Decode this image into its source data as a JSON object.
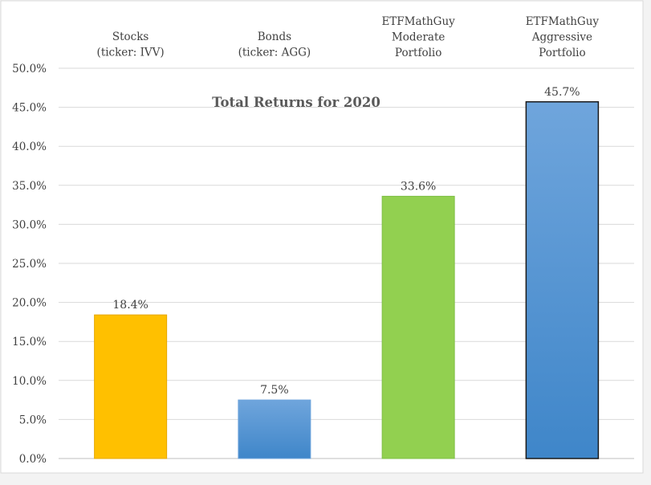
{
  "chart_data": {
    "type": "bar",
    "title": "Total Returns for 2020",
    "xlabel": "",
    "ylabel": "",
    "ylim": [
      0,
      50
    ],
    "ytick_step": 5,
    "ytick_format": "percent_1dp",
    "grid": true,
    "legend": "none",
    "categories": [
      [
        "Stocks",
        "(ticker: IVV)"
      ],
      [
        "Bonds",
        "(ticker: AGG)"
      ],
      [
        "ETFMathGuy",
        "Moderate",
        "Portfolio"
      ],
      [
        "ETFMathGuy",
        "Aggressive",
        "Portfolio"
      ]
    ],
    "values": [
      18.4,
      7.5,
      33.6,
      45.7
    ],
    "data_labels": [
      "18.4%",
      "7.5%",
      "33.6%",
      "45.7%"
    ],
    "bar_colors": [
      "#ffc000",
      "#5b9bd5",
      "#92d050",
      "#5b9bd5"
    ]
  }
}
